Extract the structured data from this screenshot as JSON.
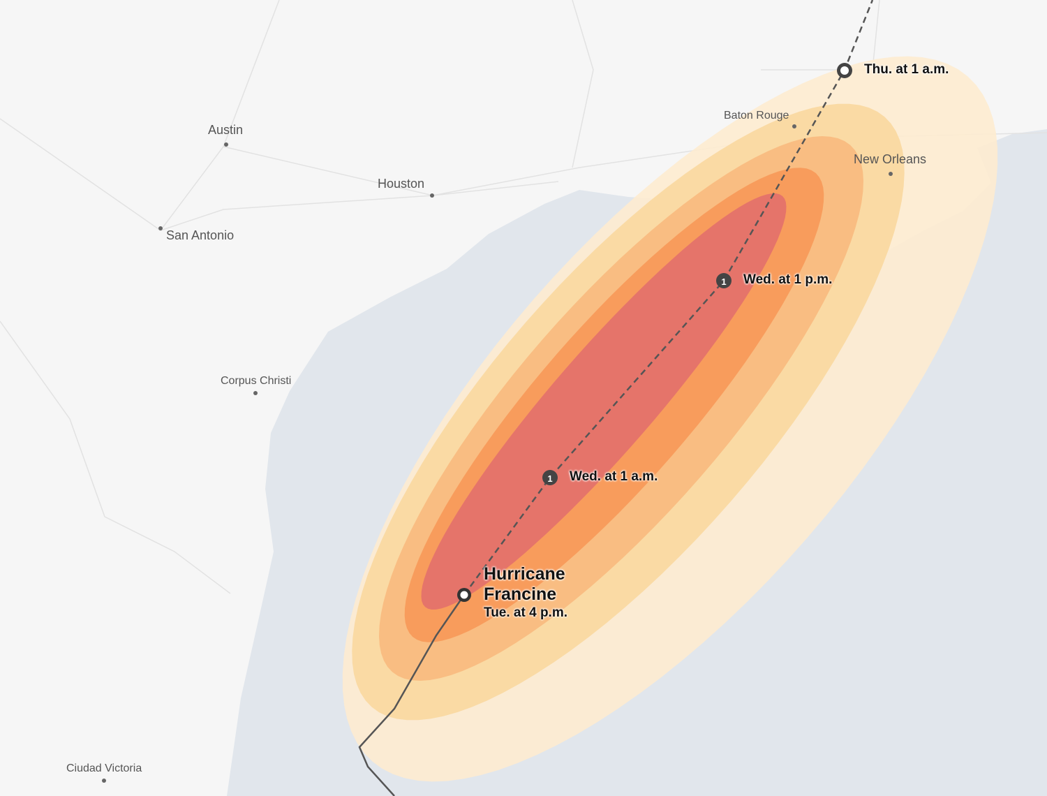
{
  "map": {
    "colors": {
      "land": "#f6f6f6",
      "water": "#e1e6ec",
      "rain_levels": [
        "#fdebd0",
        "#fad9a1",
        "#f9bd82",
        "#f89c5c",
        "#e5746a"
      ],
      "track": "#555555"
    },
    "cities": [
      {
        "name": "Austin"
      },
      {
        "name": "Houston"
      },
      {
        "name": "San Antonio"
      },
      {
        "name": "Corpus Christi"
      },
      {
        "name": "Baton Rouge"
      },
      {
        "name": "New Orleans"
      },
      {
        "name": "Ciudad Victoria"
      }
    ],
    "storm": {
      "name_line1": "Hurricane",
      "name_line2": "Francine",
      "current_time": "Tue. at 4 p.m.",
      "forecast_points": [
        {
          "time": "Wed. at 1 a.m.",
          "category": "1"
        },
        {
          "time": "Wed. at 1 p.m.",
          "category": "1"
        },
        {
          "time": "Thu. at 1 a.m.",
          "category": ""
        }
      ]
    }
  }
}
